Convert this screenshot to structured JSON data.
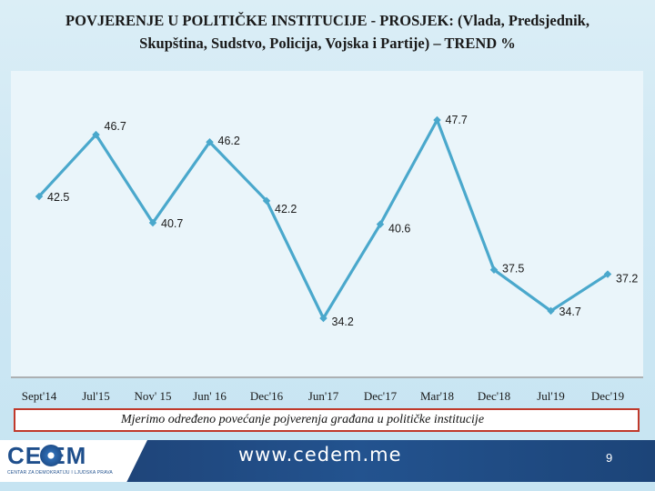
{
  "title_line1": "POVJERENJE U POLITIČKE INSTITUCIJE  - PROSJEK: (Vlada, Predsjednik,",
  "title_line2": "Skupština, Sudstvo, Policija, Vojska i Partije) – TREND %",
  "chart_data": {
    "type": "line",
    "categories": [
      "Sept'14",
      "Jul'15",
      "Nov' 15",
      "Jun' 16",
      "Dec'16",
      "Jun'17",
      "Dec'17",
      "Mar'18",
      "Dec'18",
      "Jul'19",
      "Dec'19"
    ],
    "series": [
      {
        "values": [
          42.5,
          46.7,
          40.7,
          46.2,
          42.2,
          34.2,
          40.6,
          47.7,
          37.5,
          34.7,
          37.2
        ],
        "labels": [
          "42.5",
          "46.7",
          "40.7",
          "46.2",
          "42.2",
          "34.2",
          "40.6",
          "47.7",
          "37.5",
          "34.7",
          "37.2"
        ]
      }
    ],
    "title": "",
    "xlabel": "",
    "ylabel": "",
    "grid": false,
    "color": "#4aa8cc"
  },
  "note": "Mjerimo određeno povećanje pojverenja građana u političke institucije",
  "footer": {
    "logo_text": "CE  EM",
    "logo_subtitle": "CENTAR ZA DEMOKRATIJU I LJUDSKA PRAVA",
    "website": "www.cedem.me",
    "page_number": "9"
  }
}
